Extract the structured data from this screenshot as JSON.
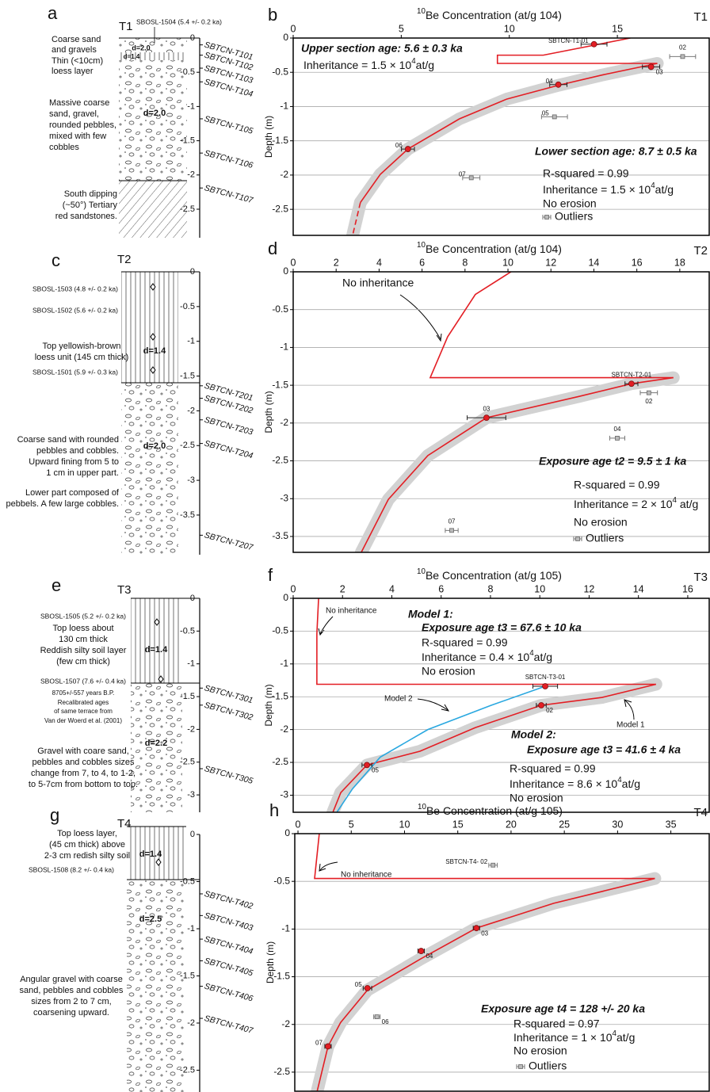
{
  "columns": [
    {
      "letter": "a",
      "terrace": "T1",
      "osl": [
        "SBOSL-1504 (5.4 +/- 0.2 ka)"
      ],
      "description": [
        "Coarse sand",
        "and gravels",
        "Thin (<10cm)",
        "loess layer",
        "Massive coarse",
        "sand, gravel,",
        "rounded pebbles,",
        "mixed with few",
        "cobbles",
        "South dipping",
        "(~50°) Tertiary",
        "red sandstones."
      ],
      "densities": [
        "d=2.0",
        "d=1.4",
        "d=2.0"
      ],
      "depth_ticks": [
        0,
        -0.5,
        -1,
        -1.5,
        -2,
        -2.5
      ],
      "samples": {
        "names": [
          "SBTCN-T101",
          "SBTCN-T102",
          "SBTCN-T103",
          "SBTCN-T104",
          "SBTCN-T105",
          "SBTCN-T106",
          "SBTCN-T107"
        ],
        "depths": [
          -0.1,
          -0.25,
          -0.44,
          -0.64,
          -1.18,
          -1.68,
          -2.19
        ]
      }
    },
    {
      "letter": "c",
      "terrace": "T2",
      "osl": [
        "SBOSL-1503 (4.8 +/- 0.2 ka)",
        "SBOSL-1502 (5.6 +/- 0.2 ka)",
        "SBOSL-1501 (5.9 +/- 0.3 ka)"
      ],
      "description": [
        "Top yellowish-brown",
        "loess unit (145 cm thick)",
        "Coarse sand with rounded",
        "pebbles and cobbles.",
        "Upward fining from 5 to",
        "1 cm in upper part.",
        "Lower part composed of",
        "pebbels. A few large cobbles."
      ],
      "densities": [
        "d=1.4",
        "d=2.0"
      ],
      "depth_ticks": [
        0,
        -0.5,
        -1,
        -1.5,
        -2,
        -2.5,
        -3,
        -3.5
      ],
      "samples": {
        "names": [
          "SBTCN-T201",
          "SBTCN-T202",
          "SBTCN-T203",
          "SBTCN-T204",
          "SBTCN-T207"
        ],
        "depths": [
          -1.64,
          -1.82,
          -2.13,
          -2.47,
          -3.79
        ]
      }
    },
    {
      "letter": "e",
      "terrace": "T3",
      "osl": [
        "SBOSL-1505 (5.2 +/- 0.2 ka)",
        "SBOSL-1507 (7.6 +/- 0.4 ka)"
      ],
      "description": [
        "Top loess about",
        "130 cm thick",
        "Reddish silty soil layer",
        "(few cm thick)",
        "8705+/-557 years B.P.",
        "Recalibrated ages",
        "of same terrace from",
        "Van der Woerd et al. (2001)",
        "Gravel with coare sand,",
        "pebbles and cobbles sizes",
        "change from 7, to 4, to 1-2,",
        "to 5-7cm from bottom to top."
      ],
      "densities": [
        "d=1.4",
        "d=2.2"
      ],
      "depth_ticks": [
        0,
        -0.5,
        -1,
        -1.5,
        -2,
        -2.5,
        -3
      ],
      "samples": {
        "names": [
          "SBTCN-T301",
          "SBTCN-T302",
          "SBTCN-T305"
        ],
        "depths": [
          -1.37,
          -1.63,
          -2.6
        ]
      }
    },
    {
      "letter": "g",
      "terrace": "T4",
      "osl": [
        "SBOSL-1508 (8.2 +/- 0.4 ka)"
      ],
      "description": [
        "Top loess layer,",
        "(45 cm thick) above",
        "2-3 cm redish silty soil",
        "Angular gravel with coarse",
        "sand, pebbles and cobbles",
        "sizes from 2 to 7 cm,",
        "coarsening upward."
      ],
      "densities": [
        "d=1.4",
        "d=2.5"
      ],
      "depth_ticks": [
        0,
        -0.5,
        -1,
        -1.5,
        -2,
        -2.5
      ],
      "samples": {
        "names": [
          "SBTCN-T402",
          "SBTCN-T403",
          "SBTCN-T404",
          "SBTCN-T405",
          "SBTCN-T406",
          "SBTCN-T407"
        ],
        "depths": [
          -0.63,
          -0.86,
          -1.11,
          -1.34,
          -1.61,
          -1.95
        ]
      }
    }
  ],
  "chart_data": [
    {
      "type": "scatter",
      "letter": "b",
      "terrace": "T1",
      "x_label": [
        "10",
        "Be Concentration (at/g 10",
        "4",
        ")"
      ],
      "y_label": "Depth (m)",
      "xlim": [
        0,
        19.25
      ],
      "xticks": [
        0,
        5,
        10,
        15
      ],
      "ylim": [
        -2.88,
        0
      ],
      "yticks": [
        0,
        -0.5,
        -1,
        -1.5,
        -2,
        -2.5
      ],
      "grid": true,
      "samples": {
        "names": [
          "SBTCN-T1-01",
          "02",
          "03",
          "04",
          "05",
          "06",
          "07"
        ],
        "x": [
          13.92,
          18.02,
          16.56,
          12.27,
          12.09,
          5.31,
          8.24
        ],
        "xerr": [
          0.6,
          0.6,
          0.4,
          0.4,
          0.6,
          0.3,
          0.4
        ],
        "y": [
          -0.09,
          -0.27,
          -0.42,
          -0.68,
          -1.15,
          -1.62,
          -2.04
        ],
        "outlier": [
          false,
          true,
          false,
          false,
          true,
          false,
          true
        ]
      },
      "lines": [
        {
          "color": "#e31e24",
          "x": [
            15.6,
            11.57,
            9.45,
            9.45,
            16.85
          ],
          "y": [
            0,
            -0.25,
            -0.25,
            -0.37,
            -0.37
          ]
        },
        {
          "color": "#e31e24",
          "band": true,
          "x": [
            16.85,
            14.29,
            12.27,
            9.89,
            7.69,
            5.31,
            4.03,
            3.11
          ],
          "y": [
            -0.37,
            -0.54,
            -0.69,
            -0.89,
            -1.18,
            -1.62,
            -1.99,
            -2.4
          ]
        },
        {
          "color": "#e31e24",
          "band": true,
          "dashed": true,
          "x": [
            3.11,
            2.75
          ],
          "y": [
            -2.4,
            -2.88
          ]
        }
      ],
      "annotations": [
        "Upper section age: 5.6 ± 0.3 ka",
        [
          "Inheritance = 1.5 × 10",
          "4",
          "at/g"
        ],
        "Lower section age: 8.7 ± 0.5 ka",
        "R-squared =  0.99",
        [
          "Inheritance = 1.5 × 10",
          "4",
          "at/g"
        ],
        "No erosion"
      ],
      "legend": "Outliers"
    },
    {
      "type": "scatter",
      "letter": "d",
      "terrace": "T2",
      "x_label": [
        "10",
        "Be Concentration (at/g 10",
        "4",
        ")"
      ],
      "y_label": "Depth (m)",
      "xlim": [
        0,
        19.37
      ],
      "xticks": [
        0,
        2,
        4,
        6,
        8,
        10,
        12,
        14,
        16,
        18
      ],
      "ylim": [
        -3.71,
        0
      ],
      "yticks": [
        0,
        -0.5,
        -1,
        -1.5,
        -2,
        -2.5,
        -3,
        -3.5
      ],
      "grid": true,
      "samples": {
        "names": [
          "SBTCN-T2-01",
          "02",
          "03",
          "04",
          "07"
        ],
        "x": [
          15.75,
          16.56,
          9.0,
          15.09,
          7.38
        ],
        "xerr": [
          0.3,
          0.4,
          0.9,
          0.35,
          0.3
        ],
        "y": [
          -1.48,
          -1.6,
          -1.93,
          -2.2,
          -3.42
        ],
        "outlier": [
          false,
          true,
          false,
          true,
          true
        ]
      },
      "lines": [
        {
          "color": "#e31e24",
          "x": [
            10.14,
            8.48,
            7.19,
            6.38,
            17.7
          ],
          "y": [
            0,
            -0.3,
            -0.86,
            -1.4,
            -1.4
          ]
        },
        {
          "color": "#e31e24",
          "band": true,
          "x": [
            17.7,
            15.75,
            13.28,
            9.0,
            6.27,
            4.43,
            3.17
          ],
          "y": [
            -1.4,
            -1.48,
            -1.65,
            -1.93,
            -2.43,
            -3.01,
            -3.71
          ]
        }
      ],
      "annotations": [
        "No inheritance",
        "Exposure age t2 = 9.5 ± 1 ka",
        "R-squared =  0.99",
        [
          "Inheritance = 2 × 10",
          "4",
          " at/g"
        ],
        "No erosion"
      ],
      "legend": "Outliers"
    },
    {
      "type": "scatter",
      "letter": "f",
      "terrace": "T3",
      "x_label": [
        "10",
        "Be Concentration (at/g 10",
        "5",
        ")"
      ],
      "y_label": "Depth (m)",
      "xlim": [
        0,
        16.87
      ],
      "xticks": [
        0,
        2,
        4,
        6,
        8,
        10,
        12,
        14,
        16
      ],
      "ylim": [
        -3.26,
        0
      ],
      "yticks": [
        0,
        -0.5,
        -1,
        -1.5,
        -2,
        -2.5,
        -3
      ],
      "grid": true,
      "samples": {
        "names": [
          "SBTCN-T3-01",
          "02",
          "05"
        ],
        "x": [
          10.22,
          10.06,
          2.99
        ],
        "xerr": [
          0.5,
          0.2,
          0.2
        ],
        "y": [
          -1.34,
          -1.63,
          -2.54
        ],
        "outlier": [
          false,
          false,
          false
        ]
      },
      "lines": [
        {
          "color": "#e31e24",
          "x": [
            1.03,
            0.96,
            0.96,
            14.71
          ],
          "y": [
            0,
            -0.54,
            -1.31,
            -1.31
          ]
        },
        {
          "color": "#e31e24",
          "band": true,
          "x": [
            14.71,
            12.53,
            10.06,
            7.39,
            5.14,
            2.99,
            1.93,
            1.61
          ],
          "y": [
            -1.31,
            -1.51,
            -1.63,
            -1.97,
            -2.33,
            -2.54,
            -2.96,
            -3.26
          ]
        },
        {
          "color": "#2aa8e0",
          "x": [
            10.22,
            8.03,
            5.46,
            3.53,
            2.41,
            1.77
          ],
          "y": [
            -1.34,
            -1.63,
            -2.0,
            -2.42,
            -2.9,
            -3.26
          ]
        }
      ],
      "annotations": [
        "No inheritance",
        "Model 1:",
        "Exposure age t3 = 67.6  ± 10 ka",
        "R-squared =  0.99",
        [
          "Inheritance = 0.4 × 10",
          "4",
          "at/g"
        ],
        "No erosion",
        "Model 2",
        "Model 1",
        "Model 2:",
        "Exposure age t3 = 41.6  ± 4 ka",
        "R-squared =  0.99",
        [
          "Inheritance = 8.6 × 10",
          "4",
          "at/g"
        ],
        "No erosion"
      ]
    },
    {
      "type": "scatter",
      "letter": "h",
      "terrace": "T4",
      "x_label": [
        "10",
        "Be Concentration (at/g 10",
        "5",
        ")"
      ],
      "y_label": "Depth (m)",
      "xlim": [
        -0.3,
        38.6
      ],
      "xticks": [
        0,
        5,
        10,
        15,
        20,
        25,
        30,
        35
      ],
      "ylim": [
        -2.7,
        0
      ],
      "yticks": [
        0,
        -0.5,
        -1,
        -1.5,
        -2,
        -2.5
      ],
      "grid": true,
      "samples": {
        "names": [
          "SBTCN-T4- 02",
          "03",
          "04",
          "05",
          "06",
          "07"
        ],
        "x": [
          18.31,
          16.75,
          11.56,
          6.52,
          7.41,
          2.82
        ],
        "xerr": [
          0.4,
          0.3,
          0.3,
          0.4,
          0.3,
          0.3
        ],
        "y": [
          -0.33,
          -0.99,
          -1.23,
          -1.62,
          -1.92,
          -2.23
        ],
        "outlier": [
          true,
          false,
          false,
          false,
          true,
          false
        ]
      },
      "lines": [
        {
          "color": "#e31e24",
          "x": [
            2.0,
            1.56,
            33.5
          ],
          "y": [
            0,
            -0.47,
            -0.47
          ]
        },
        {
          "color": "#e31e24",
          "band": true,
          "x": [
            33.5,
            24.0,
            16.75,
            11.56,
            6.52,
            4.0,
            2.82,
            1.78
          ],
          "y": [
            -0.47,
            -0.73,
            -0.99,
            -1.31,
            -1.64,
            -1.98,
            -2.23,
            -2.71
          ]
        }
      ],
      "annotations": [
        "No inheritance",
        "Exposure age t4 = 128 +/- 20 ka",
        "R-squared =  0.97",
        [
          "Inheritance = 1 × 10",
          "4",
          "at/g"
        ],
        "No erosion"
      ],
      "legend": "Outliers"
    }
  ]
}
